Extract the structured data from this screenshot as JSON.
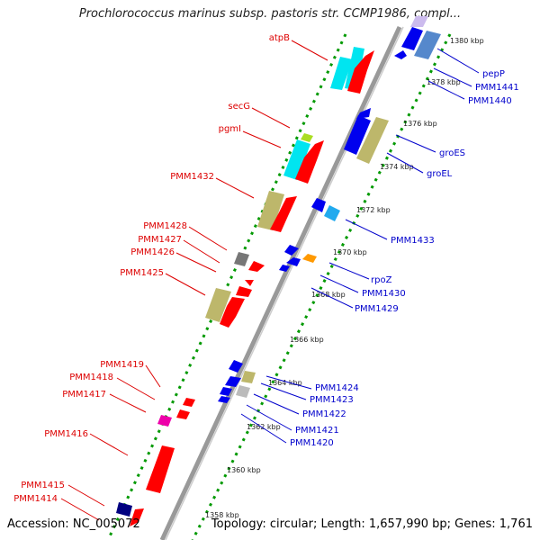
{
  "title": "Prochlorococcus marinus subsp. pastoris str. CCMP1986, compl...",
  "footer": {
    "accession": "Accession: NC_005072",
    "topology": "Topology: circular; Length: 1,657,990 bp; Genes: 1,761"
  },
  "colors": {
    "forward": "#ff0000",
    "reverse": "#0000ee",
    "cyan": "#00e5f0",
    "khaki": "#bdb76b",
    "gray": "#888888",
    "lightblue": "#66aadd",
    "orange": "#ff9900",
    "magenta": "#ee00aa",
    "tick": "#009900",
    "label_left": "#dd0000",
    "label_right": "#0000cc",
    "backbone": "#999999"
  },
  "kbp_marks": [
    "1380 kbp",
    "1378 kbp",
    "1376 kbp",
    "1374 kbp",
    "1372 kbp",
    "1370 kbp",
    "1368 kbp",
    "1366 kbp",
    "1364 kbp",
    "1362 kbp",
    "1360 kbp",
    "1358 kbp"
  ],
  "labels_left": [
    "atpB",
    "secG",
    "pgmI",
    "PMM1432",
    "PMM1428",
    "PMM1427",
    "PMM1426",
    "PMM1425",
    "PMM1419",
    "PMM1418",
    "PMM1417",
    "PMM1416",
    "PMM1415",
    "PMM1414"
  ],
  "labels_right": [
    "pepP",
    "PMM1441",
    "PMM1440",
    "groES",
    "groEL",
    "PMM1433",
    "rpoZ",
    "PMM1430",
    "PMM1429",
    "PMM1424",
    "PMM1423",
    "PMM1422",
    "PMM1421",
    "PMM1420"
  ]
}
